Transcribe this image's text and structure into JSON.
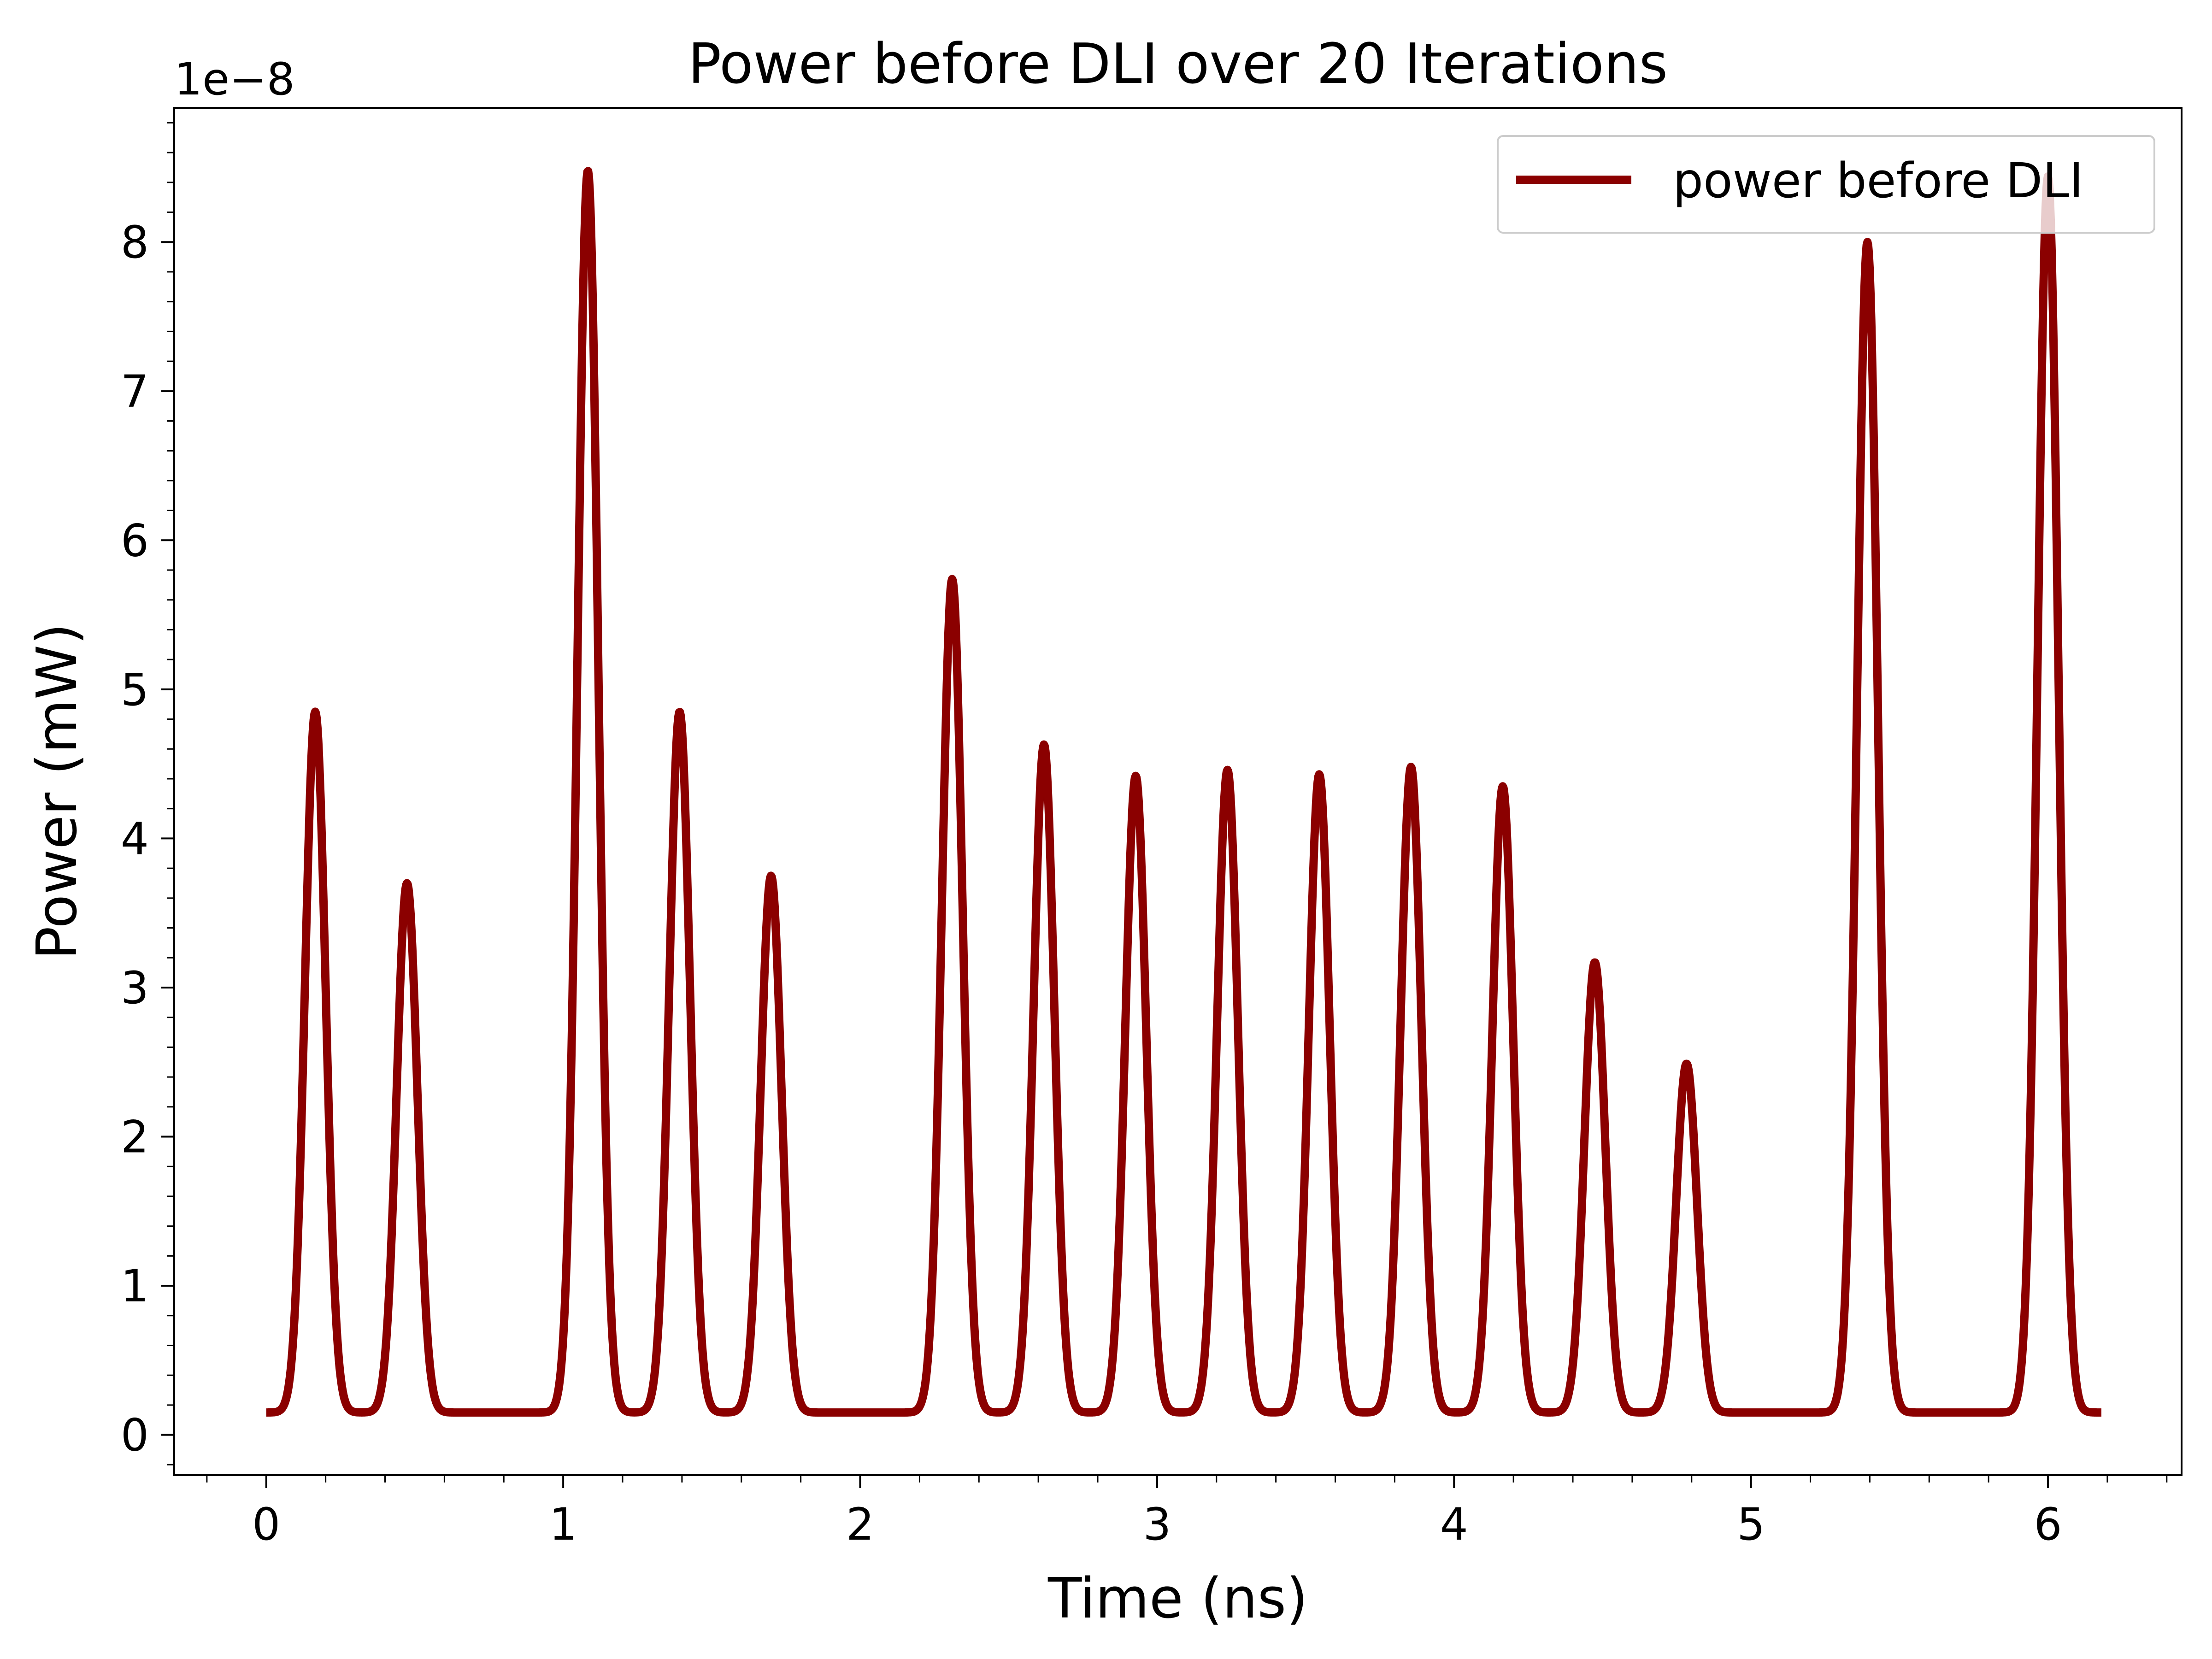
{
  "chart_data": {
    "type": "line",
    "title": "Power before DLI over 20 Iterations",
    "xlabel": "Time (ns)",
    "ylabel": "Power (mW)",
    "y_offset_label": "1e−8",
    "xlim": [
      -0.31,
      6.45
    ],
    "ylim": [
      -0.27,
      8.9
    ],
    "x_ticks": [
      0,
      1,
      2,
      3,
      4,
      5,
      6
    ],
    "x_tick_labels": [
      "0",
      "1",
      "2",
      "3",
      "4",
      "5",
      "6"
    ],
    "y_ticks": [
      0,
      1,
      2,
      3,
      4,
      5,
      6,
      7,
      8
    ],
    "y_tick_labels": [
      "0",
      "1",
      "2",
      "3",
      "4",
      "5",
      "6",
      "7",
      "8"
    ],
    "x_minor_step": 0.2,
    "y_minor_step": 0.2,
    "grid": false,
    "legend_position": "top-right",
    "line_color": "#8b0000",
    "baseline": 0.15,
    "pulse_width_sigma": 0.035,
    "x_start": 0.0,
    "x_end": 6.18,
    "series": [
      {
        "name": "power before DLI",
        "color": "#8b0000",
        "peaks": [
          {
            "x": 0.165,
            "y": 4.85
          },
          {
            "x": 0.474,
            "y": 3.7
          },
          {
            "x": 1.083,
            "y": 8.48
          },
          {
            "x": 1.392,
            "y": 4.85
          },
          {
            "x": 1.7,
            "y": 3.75
          },
          {
            "x": 2.31,
            "y": 5.74
          },
          {
            "x": 2.619,
            "y": 4.63
          },
          {
            "x": 2.928,
            "y": 4.42
          },
          {
            "x": 3.237,
            "y": 4.46
          },
          {
            "x": 3.546,
            "y": 4.43
          },
          {
            "x": 3.855,
            "y": 4.48
          },
          {
            "x": 4.164,
            "y": 4.35
          },
          {
            "x": 4.474,
            "y": 3.17
          },
          {
            "x": 4.783,
            "y": 2.49
          },
          {
            "x": 5.392,
            "y": 8.0
          },
          {
            "x": 6.0,
            "y": 8.44
          }
        ]
      }
    ]
  }
}
